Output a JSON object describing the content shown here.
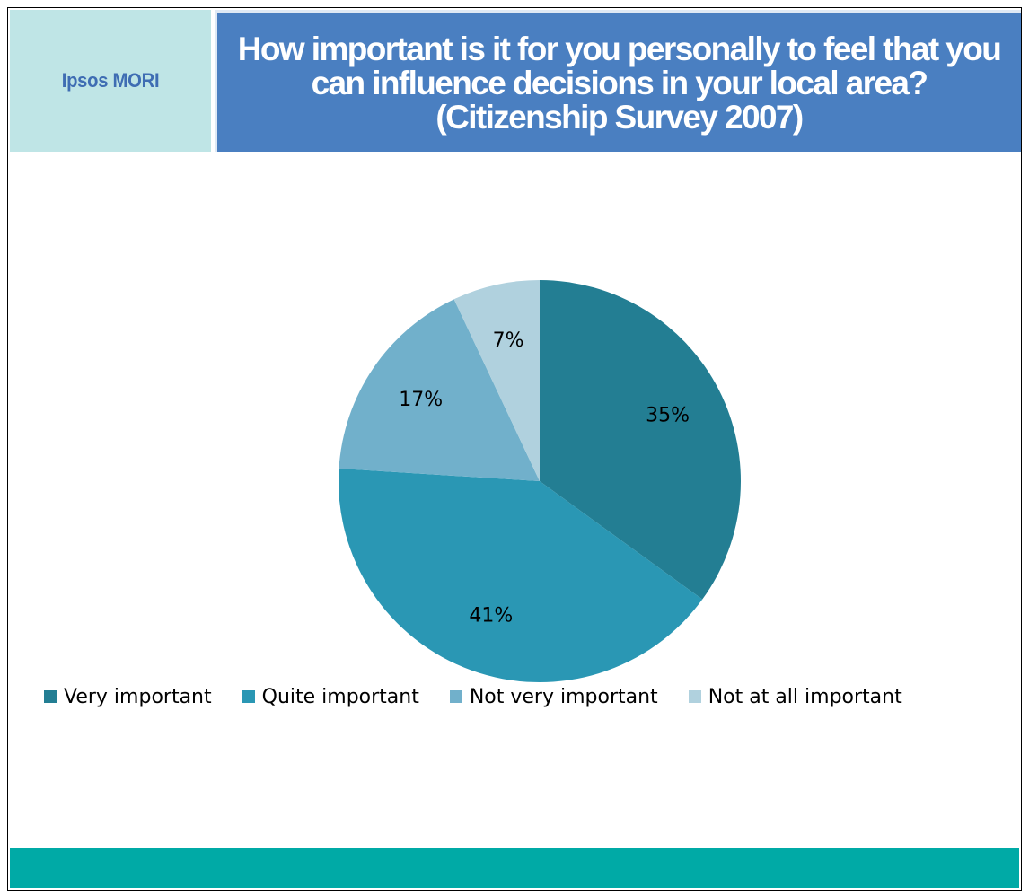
{
  "logo": {
    "text": "Ipsos MORI"
  },
  "header": {
    "title": "How important is it for you personally to feel that you\ncan influence decisions in your local area?\n(Citizenship Survey 2007)"
  },
  "chart_data": {
    "type": "pie",
    "title": "How important is it for you personally to feel that you can influence decisions in your local area? (Citizenship Survey 2007)",
    "categories": [
      "Very important",
      "Quite important",
      "Not very important",
      "Not at all important"
    ],
    "values": [
      35,
      41,
      17,
      7
    ],
    "data_labels": [
      "35%",
      "41%",
      "17%",
      "7%"
    ],
    "unit": "%",
    "colors": [
      "#237e93",
      "#2a97b4",
      "#71b0cb",
      "#b0d1de"
    ],
    "legend_position": "bottom",
    "start_angle": "12 o'clock",
    "direction": "clockwise"
  },
  "colors": {
    "logo_background": "#bfe5e6",
    "logo_text": "#3f6db3",
    "title_background": "#4a7fc1",
    "bottom_bar": "#00aaa6"
  }
}
